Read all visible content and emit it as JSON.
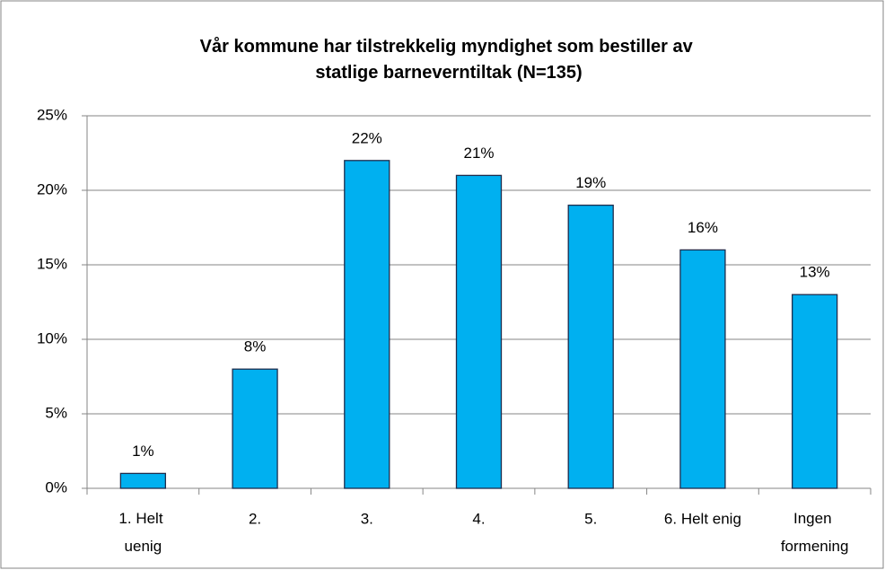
{
  "chart_data": {
    "type": "bar",
    "title": "Vår kommune har tilstrekkelig myndighet som bestiller av statlige barneverntiltak (N=135)",
    "categories": [
      "1. Helt uenig",
      "2.",
      "3.",
      "4.",
      "5.",
      "6. Helt enig",
      "Ingen formening"
    ],
    "values": [
      1,
      8,
      22,
      21,
      19,
      16,
      13
    ],
    "value_labels": [
      "1%",
      "8%",
      "22%",
      "21%",
      "19%",
      "16%",
      "13%"
    ],
    "color": "#00b0f0",
    "ylim": [
      0,
      25
    ],
    "yticks": [
      {
        "value": 0,
        "label": "0%"
      },
      {
        "value": 5,
        "label": "5%"
      },
      {
        "value": 10,
        "label": "10%"
      },
      {
        "value": 15,
        "label": "15%"
      },
      {
        "value": 20,
        "label": "20%"
      },
      {
        "value": 25,
        "label": "25%"
      }
    ],
    "grid": true
  }
}
